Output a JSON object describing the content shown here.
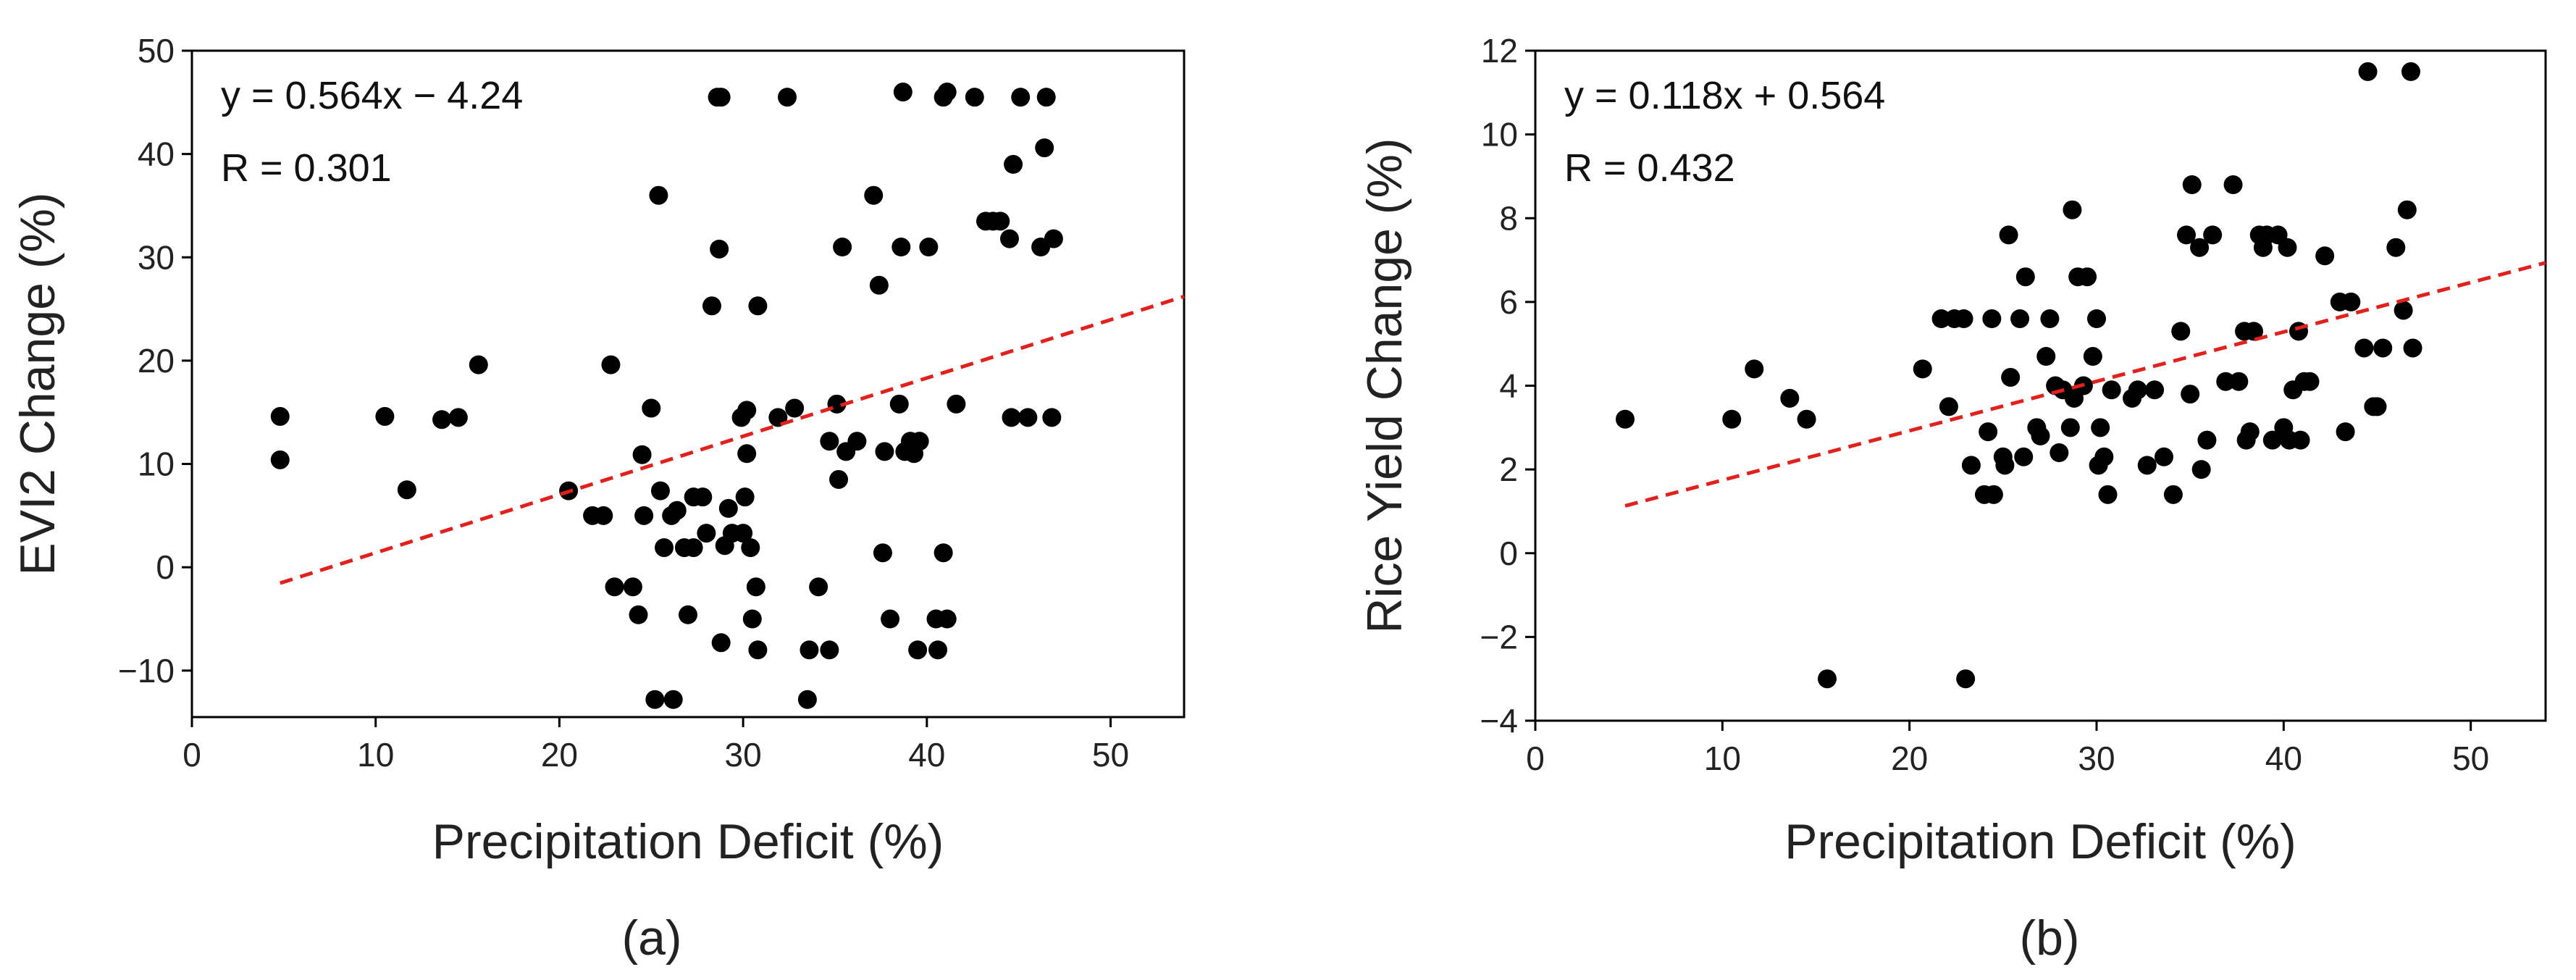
{
  "chart_data": [
    {
      "type": "scatter",
      "panel_label": "(a)",
      "xlabel": "Precipitation Deficit (%)",
      "ylabel": "EVI2 Change (%)",
      "xlim": [
        0,
        54
      ],
      "ylim": [
        -14.5,
        50
      ],
      "xticks": [
        0,
        10,
        20,
        30,
        40,
        50
      ],
      "yticks": [
        -10,
        0,
        10,
        20,
        30,
        40,
        50
      ],
      "annotation": {
        "equation": "y = 0.564x − 4.24",
        "r": "R = 0.301"
      },
      "fit": {
        "slope": 0.564,
        "intercept": -4.24,
        "x_range": [
          4.8,
          54
        ]
      },
      "points": [
        [
          4.8,
          14.6
        ],
        [
          4.8,
          10.4
        ],
        [
          10.5,
          14.6
        ],
        [
          11.7,
          7.5
        ],
        [
          13.6,
          14.3
        ],
        [
          14.5,
          14.5
        ],
        [
          15.6,
          19.6
        ],
        [
          20.5,
          7.4
        ],
        [
          21.8,
          5.0
        ],
        [
          22.4,
          5.0
        ],
        [
          22.8,
          19.6
        ],
        [
          23.0,
          -1.9
        ],
        [
          24.0,
          -1.9
        ],
        [
          24.3,
          -4.6
        ],
        [
          24.5,
          10.9
        ],
        [
          24.6,
          5.0
        ],
        [
          25.0,
          15.4
        ],
        [
          25.2,
          -12.8
        ],
        [
          25.4,
          36.0
        ],
        [
          25.5,
          7.4
        ],
        [
          25.7,
          1.9
        ],
        [
          26.1,
          5.0
        ],
        [
          26.2,
          -12.8
        ],
        [
          26.4,
          5.5
        ],
        [
          26.8,
          1.9
        ],
        [
          27.0,
          -4.6
        ],
        [
          27.3,
          1.9
        ],
        [
          27.3,
          6.8
        ],
        [
          27.8,
          6.8
        ],
        [
          28.0,
          3.3
        ],
        [
          28.3,
          25.3
        ],
        [
          28.6,
          45.5
        ],
        [
          28.7,
          30.8
        ],
        [
          28.8,
          -7.3
        ],
        [
          28.8,
          45.5
        ],
        [
          29.0,
          2.1
        ],
        [
          29.2,
          5.7
        ],
        [
          29.4,
          3.3
        ],
        [
          29.9,
          14.5
        ],
        [
          30.0,
          3.3
        ],
        [
          30.1,
          6.8
        ],
        [
          30.2,
          11.0
        ],
        [
          30.2,
          15.2
        ],
        [
          30.4,
          1.9
        ],
        [
          30.5,
          -5.0
        ],
        [
          30.7,
          -1.9
        ],
        [
          30.8,
          25.3
        ],
        [
          30.8,
          -8.0
        ],
        [
          31.9,
          14.5
        ],
        [
          32.4,
          45.5
        ],
        [
          32.8,
          15.4
        ],
        [
          33.5,
          -12.8
        ],
        [
          33.6,
          -8.0
        ],
        [
          34.1,
          -1.9
        ],
        [
          34.7,
          -8.0
        ],
        [
          34.7,
          12.2
        ],
        [
          35.1,
          15.8
        ],
        [
          35.2,
          8.5
        ],
        [
          35.4,
          31.0
        ],
        [
          35.6,
          11.2
        ],
        [
          36.2,
          12.2
        ],
        [
          37.1,
          36.0
        ],
        [
          37.4,
          27.3
        ],
        [
          37.6,
          1.4
        ],
        [
          37.7,
          11.2
        ],
        [
          38.0,
          -5.0
        ],
        [
          38.5,
          15.8
        ],
        [
          38.6,
          31.0
        ],
        [
          38.7,
          46.0
        ],
        [
          38.8,
          11.2
        ],
        [
          39.1,
          12.2
        ],
        [
          39.3,
          11.0
        ],
        [
          39.5,
          -8.0
        ],
        [
          39.6,
          12.2
        ],
        [
          40.1,
          31.0
        ],
        [
          40.5,
          -5.0
        ],
        [
          40.6,
          -8.0
        ],
        [
          40.9,
          1.4
        ],
        [
          40.9,
          45.5
        ],
        [
          41.1,
          -5.0
        ],
        [
          41.1,
          46.0
        ],
        [
          41.6,
          15.8
        ],
        [
          42.6,
          45.5
        ],
        [
          43.2,
          33.5
        ],
        [
          43.6,
          33.5
        ],
        [
          44.0,
          33.5
        ],
        [
          44.5,
          31.8
        ],
        [
          44.6,
          14.5
        ],
        [
          44.7,
          39.0
        ],
        [
          45.1,
          45.5
        ],
        [
          45.5,
          14.5
        ],
        [
          46.2,
          31.0
        ],
        [
          46.4,
          40.6
        ],
        [
          46.5,
          45.5
        ],
        [
          46.8,
          14.5
        ],
        [
          46.9,
          31.8
        ]
      ]
    },
    {
      "type": "scatter",
      "panel_label": "(b)",
      "xlabel": "Precipitation Deficit (%)",
      "ylabel": "Rice Yield Change (%)",
      "xlim": [
        0,
        54
      ],
      "ylim": [
        -4,
        12
      ],
      "xticks": [
        0,
        10,
        20,
        30,
        40,
        50
      ],
      "yticks": [
        -4,
        -2,
        0,
        2,
        4,
        6,
        8,
        10,
        12
      ],
      "ytick_labels": [
        "−4",
        "−2",
        "0",
        "2",
        "4",
        "6",
        "8",
        "10",
        "12"
      ],
      "annotation": {
        "equation": "y = 0.118x + 0.564",
        "r": "R = 0.432"
      },
      "fit": {
        "slope": 0.118,
        "intercept": 0.564,
        "x_range": [
          4.8,
          54
        ]
      },
      "points": [
        [
          4.8,
          3.2
        ],
        [
          10.5,
          3.2
        ],
        [
          11.7,
          4.4
        ],
        [
          13.6,
          3.7
        ],
        [
          14.5,
          3.2
        ],
        [
          15.6,
          -3.0
        ],
        [
          20.7,
          4.4
        ],
        [
          21.7,
          5.6
        ],
        [
          22.1,
          3.5
        ],
        [
          22.4,
          5.6
        ],
        [
          22.9,
          5.6
        ],
        [
          23.0,
          -3.0
        ],
        [
          23.3,
          2.1
        ],
        [
          24.0,
          1.4
        ],
        [
          24.2,
          2.9
        ],
        [
          24.4,
          5.6
        ],
        [
          24.5,
          1.4
        ],
        [
          25.0,
          2.3
        ],
        [
          25.1,
          2.1
        ],
        [
          25.3,
          7.6
        ],
        [
          25.4,
          4.2
        ],
        [
          25.9,
          5.6
        ],
        [
          26.1,
          2.3
        ],
        [
          26.2,
          6.6
        ],
        [
          26.8,
          3.0
        ],
        [
          27.0,
          2.8
        ],
        [
          27.3,
          4.7
        ],
        [
          27.5,
          5.6
        ],
        [
          27.8,
          4.0
        ],
        [
          28.0,
          2.4
        ],
        [
          28.2,
          3.9
        ],
        [
          28.6,
          3.0
        ],
        [
          28.7,
          8.2
        ],
        [
          28.8,
          3.7
        ],
        [
          29.0,
          6.6
        ],
        [
          29.3,
          4.0
        ],
        [
          29.5,
          6.6
        ],
        [
          29.8,
          4.7
        ],
        [
          30.0,
          5.6
        ],
        [
          30.1,
          2.1
        ],
        [
          30.2,
          3.0
        ],
        [
          30.4,
          2.3
        ],
        [
          30.6,
          1.4
        ],
        [
          30.8,
          3.9
        ],
        [
          31.9,
          3.7
        ],
        [
          32.2,
          3.9
        ],
        [
          32.7,
          2.1
        ],
        [
          33.1,
          3.9
        ],
        [
          33.6,
          2.3
        ],
        [
          34.1,
          1.4
        ],
        [
          34.5,
          5.3
        ],
        [
          34.8,
          7.6
        ],
        [
          35.0,
          3.8
        ],
        [
          35.1,
          8.8
        ],
        [
          35.5,
          7.3
        ],
        [
          35.6,
          2.0
        ],
        [
          35.9,
          2.7
        ],
        [
          36.2,
          7.6
        ],
        [
          36.9,
          4.1
        ],
        [
          37.3,
          8.8
        ],
        [
          37.6,
          4.1
        ],
        [
          37.9,
          5.3
        ],
        [
          38.0,
          2.7
        ],
        [
          38.2,
          2.9
        ],
        [
          38.4,
          5.3
        ],
        [
          38.7,
          7.6
        ],
        [
          38.9,
          7.3
        ],
        [
          39.1,
          7.6
        ],
        [
          39.4,
          2.7
        ],
        [
          39.7,
          7.6
        ],
        [
          40.0,
          3.0
        ],
        [
          40.2,
          7.3
        ],
        [
          40.3,
          2.7
        ],
        [
          40.5,
          3.9
        ],
        [
          40.8,
          5.3
        ],
        [
          40.9,
          2.7
        ],
        [
          41.1,
          4.1
        ],
        [
          41.4,
          4.1
        ],
        [
          42.2,
          7.1
        ],
        [
          43.0,
          6.0
        ],
        [
          43.3,
          2.9
        ],
        [
          43.6,
          6.0
        ],
        [
          44.3,
          4.9
        ],
        [
          44.5,
          11.5
        ],
        [
          44.8,
          3.5
        ],
        [
          45.0,
          3.5
        ],
        [
          45.3,
          4.9
        ],
        [
          46.0,
          7.3
        ],
        [
          46.4,
          5.8
        ],
        [
          46.6,
          8.2
        ],
        [
          46.8,
          11.5
        ],
        [
          46.9,
          4.9
        ]
      ]
    }
  ]
}
